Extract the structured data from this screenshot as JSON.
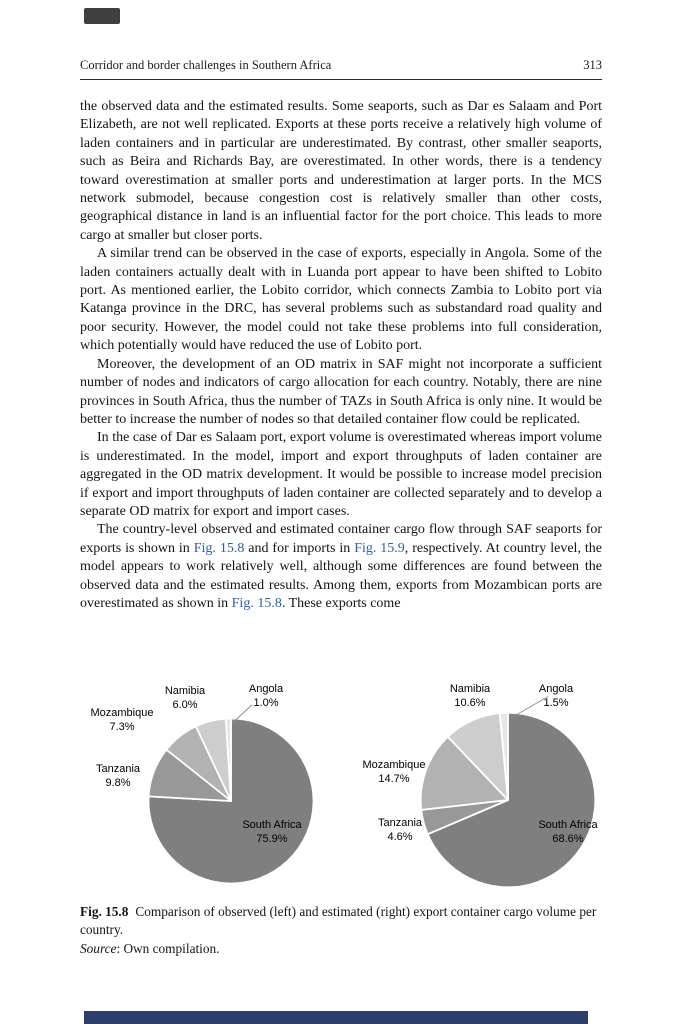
{
  "page": {
    "header": {
      "running_title": "Corridor and border challenges in Southern Africa",
      "page_number": "313"
    },
    "paragraphs": [
      {
        "indent": false,
        "segments": [
          {
            "text": "the observed data and the estimated results. Some seaports, such as Dar es Salaam and Port Elizabeth, are not well replicated. Exports at these ports receive a relatively high volume of laden containers and in particular are underestimated. By contrast, other smaller seaports, such as Beira and Richards Bay, are overestimated. In other words, there is a tendency toward overestimation at smaller ports and underestimation at larger ports. In the MCS network submodel, because congestion cost is relatively smaller than other costs, geographical distance in land is an influential factor for the port choice. This leads to more cargo at smaller but closer ports."
          }
        ]
      },
      {
        "indent": true,
        "segments": [
          {
            "text": "A similar trend can be observed in the case of exports, especially in Angola. Some of the laden containers actually dealt with in Luanda port appear to have been shifted to Lobito port. As mentioned earlier, the Lobito corridor, which connects Zambia to Lobito port via Katanga province in the DRC, has several problems such as substandard road quality and poor security. However, the model could not take these problems into full consideration, which potentially would have reduced the use of Lobito port."
          }
        ]
      },
      {
        "indent": true,
        "segments": [
          {
            "text": "Moreover, the development of an OD matrix in SAF might not incorporate a sufficient number of nodes and indicators of cargo allocation for each country. Notably, there are nine provinces in South Africa, thus the number of TAZs in South Africa is only nine. It would be better to increase the number of nodes so that detailed container flow could be replicated."
          }
        ]
      },
      {
        "indent": true,
        "segments": [
          {
            "text": "In the case of Dar es Salaam port, export volume is overestimated whereas import volume is underestimated. In the model, import and export throughputs of laden container are aggregated in the OD matrix development. It would be possible to increase model precision if export and import throughputs of laden container are collected separately and to develop a separate OD matrix for export and import cases."
          }
        ]
      },
      {
        "indent": true,
        "segments": [
          {
            "text": "The country-level observed and estimated container cargo flow through SAF seaports for exports is shown in "
          },
          {
            "text": "Fig. 15.8",
            "link": true
          },
          {
            "text": " and for imports in "
          },
          {
            "text": "Fig. 15.9",
            "link": true
          },
          {
            "text": ", respectively. At country level, the model appears to work relatively well, although some differences are found between the observed data and the estimated results. Among them, exports from Mozambican ports are overestimated as shown in "
          },
          {
            "text": "Fig. 15.8",
            "link": true
          },
          {
            "text": ". These exports come"
          }
        ]
      }
    ],
    "caption": {
      "label": "Fig. 15.8",
      "text": "Comparison of observed (left) and estimated (right) export container cargo volume per country."
    },
    "source": {
      "label": "Source",
      "text": ": Own compilation."
    },
    "colors": {
      "link": "#2b5dad",
      "bottom_bar": "#2c3e6b"
    }
  },
  "chart_data": [
    {
      "type": "pie",
      "name": "observed-exports",
      "categories": [
        "South Africa",
        "Tanzania",
        "Mozambique",
        "Namibia",
        "Angola"
      ],
      "values": [
        75.9,
        9.8,
        7.3,
        6.0,
        1.0
      ],
      "labels": [
        "75.9%",
        "9.8%",
        "7.3%",
        "6.0%",
        "1.0%"
      ],
      "colors": [
        "#7f7f7f",
        "#989898",
        "#b2b2b2",
        "#cdcdcd",
        "#e6e6e6"
      ],
      "start_angle_deg": 0,
      "direction": "clockwise",
      "legend": "none"
    },
    {
      "type": "pie",
      "name": "estimated-exports",
      "categories": [
        "South Africa",
        "Tanzania",
        "Mozambique",
        "Namibia",
        "Angola"
      ],
      "values": [
        68.6,
        4.6,
        14.7,
        10.6,
        1.5
      ],
      "labels": [
        "68.6%",
        "4.6%",
        "14.7%",
        "10.6%",
        "1.5%"
      ],
      "colors": [
        "#7f7f7f",
        "#989898",
        "#b2b2b2",
        "#cdcdcd",
        "#e6e6e6"
      ],
      "start_angle_deg": 0,
      "direction": "clockwise",
      "legend": "none"
    }
  ]
}
